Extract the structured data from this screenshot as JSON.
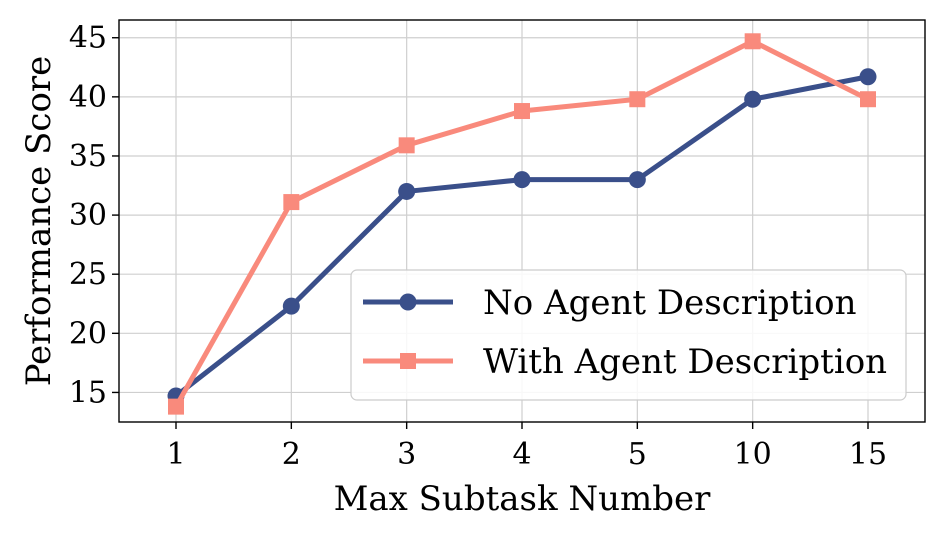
{
  "chart_data": {
    "type": "line",
    "categories": [
      "1",
      "2",
      "3",
      "4",
      "5",
      "10",
      "15"
    ],
    "xlabel": "Max Subtask Number",
    "ylabel": "Performance Score",
    "ylim": [
      12.5,
      46.5
    ],
    "yticks": [
      15,
      20,
      25,
      30,
      35,
      40,
      45
    ],
    "grid": true,
    "legend_position": "lower-right",
    "series": [
      {
        "name": "No Agent Description",
        "values": [
          14.7,
          22.3,
          32.0,
          33.0,
          33.0,
          39.8,
          41.7
        ],
        "color": "#3a4f8a",
        "marker": "circle"
      },
      {
        "name": "With Agent Description",
        "values": [
          13.8,
          31.1,
          35.9,
          38.8,
          39.8,
          44.7,
          39.8
        ],
        "color": "#f98a7c",
        "marker": "square"
      }
    ]
  }
}
